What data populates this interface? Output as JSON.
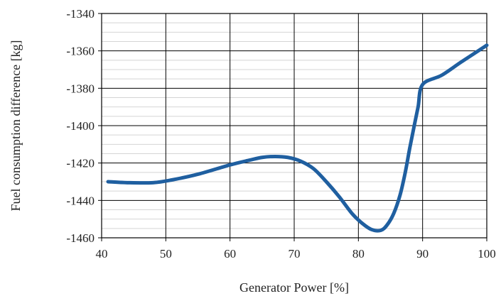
{
  "chart_data": {
    "type": "line",
    "title": "",
    "xlabel": "Generator Power [%]",
    "ylabel": "Fuel consumption difference [kg]",
    "xlim": [
      40,
      100
    ],
    "ylim": [
      -1460,
      -1340
    ],
    "x_ticks": [
      "40",
      "50",
      "60",
      "70",
      "80",
      "90",
      "100"
    ],
    "y_ticks": [
      "-1340",
      "-1360",
      "-1380",
      "-1400",
      "-1420",
      "-1440",
      "-1460"
    ],
    "grid": {
      "major": true,
      "minor_y": true
    },
    "series": [
      {
        "color": "#1f5fa0",
        "x": [
          41,
          44,
          48,
          51,
          55,
          60,
          63,
          65,
          67,
          69,
          71,
          73,
          75,
          77,
          79,
          80.5,
          82,
          83.5,
          84.5,
          85.5,
          86.5,
          87.3,
          88,
          88.7,
          89.3,
          90,
          93,
          96,
          100
        ],
        "y": [
          -1430,
          -1430.5,
          -1430.5,
          -1429,
          -1426,
          -1421,
          -1418.5,
          -1417,
          -1416.5,
          -1417,
          -1419,
          -1423,
          -1430,
          -1438,
          -1447,
          -1452,
          -1455.5,
          -1456,
          -1453,
          -1447,
          -1437,
          -1425,
          -1412,
          -1400,
          -1390,
          -1378,
          -1373,
          -1366,
          -1357
        ]
      }
    ]
  }
}
